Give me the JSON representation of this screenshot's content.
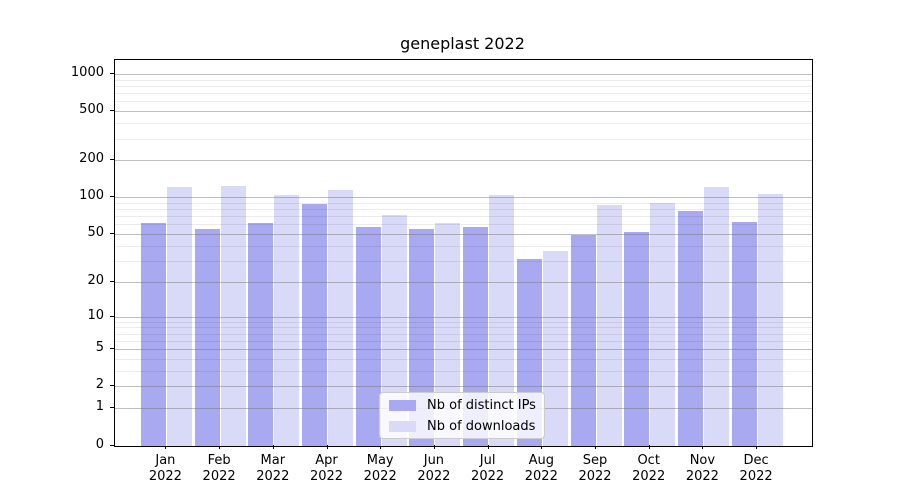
{
  "figure": {
    "title": "geneplast 2022"
  },
  "chart_data": {
    "type": "bar",
    "title": "geneplast 2022",
    "categories": [
      "Jan",
      "Feb",
      "Mar",
      "Apr",
      "May",
      "Jun",
      "Jul",
      "Aug",
      "Sep",
      "Oct",
      "Nov",
      "Dec"
    ],
    "category_year": "2022",
    "series": [
      {
        "name": "Nb of distinct IPs",
        "color": "#a9a9f2",
        "values": [
          62,
          55,
          62,
          88,
          57,
          55,
          57,
          31,
          49,
          52,
          77,
          63
        ]
      },
      {
        "name": "Nb of downloads",
        "color": "#d9d9f8",
        "values": [
          122,
          123,
          104,
          114,
          72,
          62,
          105,
          36,
          86,
          90,
          122,
          107
        ]
      }
    ],
    "xlabel": "",
    "ylabel": "",
    "y_scale": "log10(1+y)",
    "y_major_ticks": [
      0,
      1,
      2,
      5,
      10,
      20,
      50,
      100,
      200,
      500,
      1000
    ],
    "y_minor_ticks": [
      3,
      4,
      6,
      7,
      8,
      9,
      30,
      40,
      60,
      70,
      80,
      90,
      300,
      400,
      600,
      700,
      800,
      900
    ],
    "ylim": [
      0,
      1300
    ],
    "grid": "on",
    "legend_position": "lower-center"
  }
}
